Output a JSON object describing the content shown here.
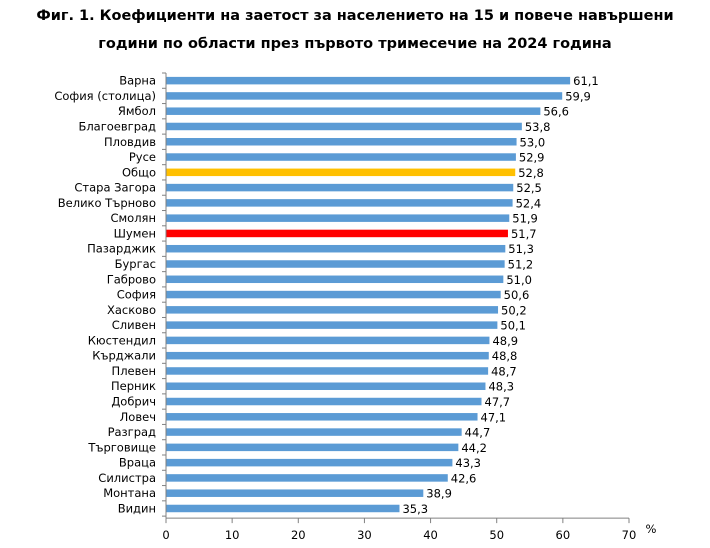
{
  "chart_data": {
    "type": "bar",
    "orientation": "horizontal",
    "title_line_1": "Фиг. 1. Коефициенти на заетост за населението на 15 и повече навършени",
    "title_line_2": "години по области през първото тримесечие на 2024 година",
    "categories": [
      "Варна",
      "София (столица)",
      "Ямбол",
      "Благоевград",
      "Пловдив",
      "Русе",
      "Общо",
      "Стара Загора",
      "Велико Търново",
      "Смолян",
      "Шумен",
      "Пазарджик",
      "Бургас",
      "Габрово",
      "София",
      "Хасково",
      "Сливен",
      "Кюстендил",
      "Кърджали",
      "Плевен",
      "Перник",
      "Добрич",
      "Ловеч",
      "Разград",
      "Търговище",
      "Враца",
      "Силистра",
      "Монтана",
      "Видин"
    ],
    "values": [
      61.1,
      59.9,
      56.6,
      53.8,
      53.0,
      52.9,
      52.8,
      52.5,
      52.4,
      51.9,
      51.7,
      51.3,
      51.2,
      51.0,
      50.6,
      50.2,
      50.1,
      48.9,
      48.8,
      48.7,
      48.3,
      47.7,
      47.1,
      44.7,
      44.2,
      43.3,
      42.6,
      38.9,
      35.3
    ],
    "value_labels": [
      "61,1",
      "59,9",
      "56,6",
      "53,8",
      "53,0",
      "52,9",
      "52,8",
      "52,5",
      "52,4",
      "51,9",
      "51,7",
      "51,3",
      "51,2",
      "51,0",
      "50,6",
      "50,2",
      "50,1",
      "48,9",
      "48,8",
      "48,7",
      "48,3",
      "47,7",
      "47,1",
      "44,7",
      "44,2",
      "43,3",
      "42,6",
      "38,9",
      "35,3"
    ],
    "highlight": {
      "Общо": "#ffc000",
      "Шумен": "#ff0000"
    },
    "default_color": "#5b9bd5",
    "xlim": [
      0,
      70
    ],
    "xticks": [
      "0",
      "10",
      "20",
      "30",
      "40",
      "50",
      "60",
      "70"
    ],
    "xlabel": "%",
    "grid": false
  }
}
